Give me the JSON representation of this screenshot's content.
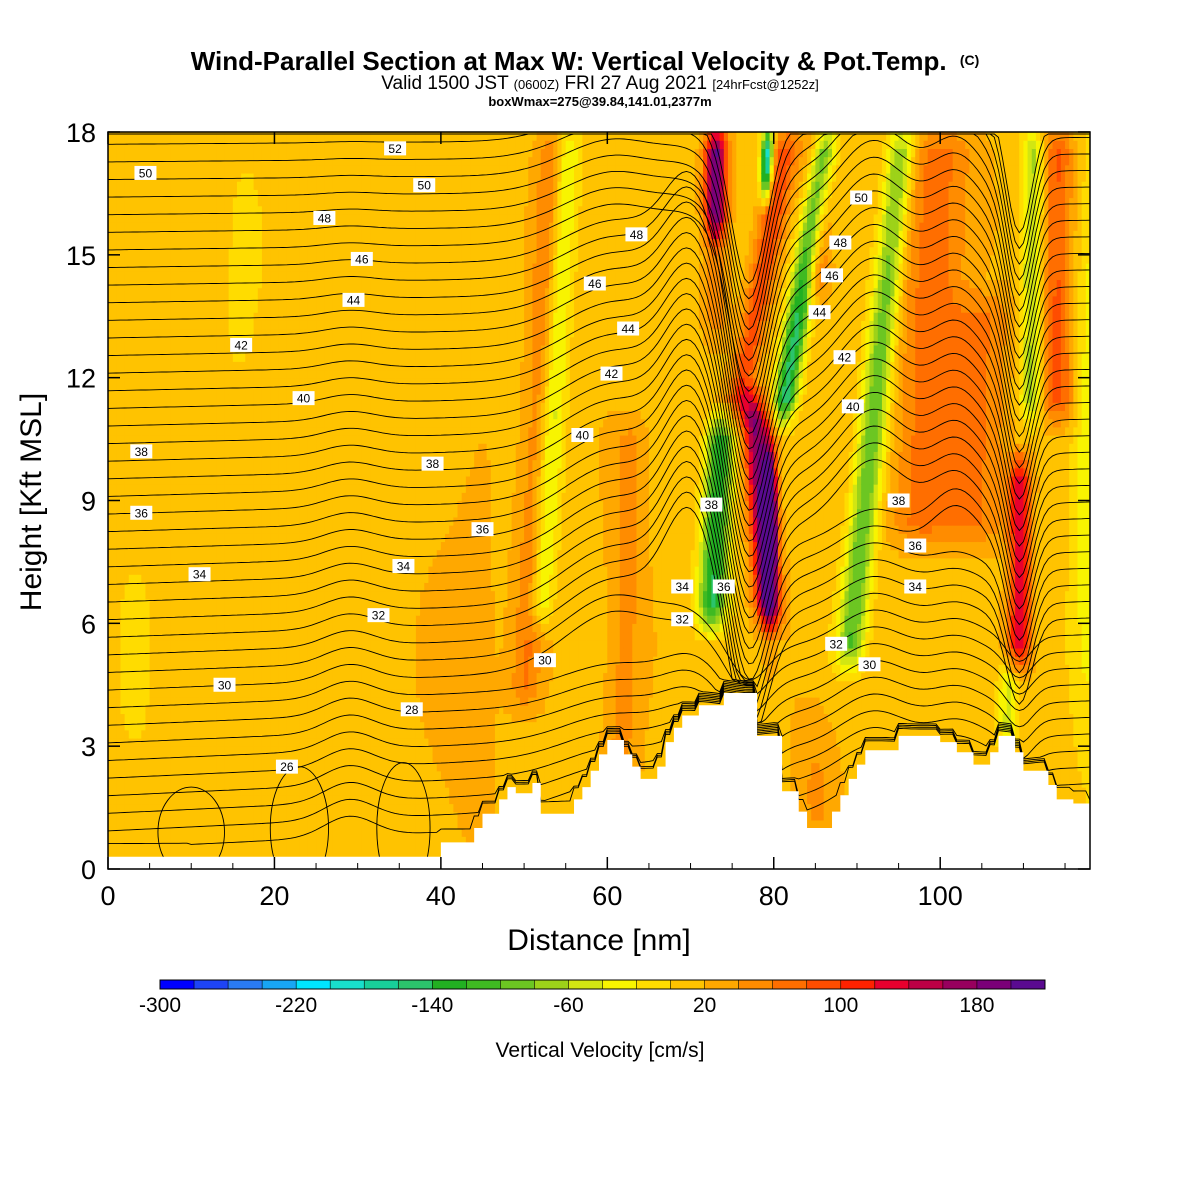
{
  "chart_data": {
    "type": "heatmap",
    "title": "Wind-Parallel Section at Max W: Vertical Velocity & Pot.Temp.",
    "title_mark": "(C)",
    "subtitle_main": "Valid 1500 JST",
    "subtitle_z": "(0600Z)",
    "subtitle_date": "FRI 27 Aug 2021",
    "subtitle_fcst": "[24hrFcst@1252z]",
    "subtitle2": "boxWmax=275@39.84,141.01,2377m",
    "xlabel": "Distance [nm]",
    "ylabel": "Height [Kft MSL]",
    "xlim": [
      0,
      118
    ],
    "ylim": [
      0,
      18
    ],
    "x_ticks": [
      0,
      20,
      40,
      60,
      80,
      100
    ],
    "y_ticks": [
      0,
      3,
      6,
      9,
      12,
      15,
      18
    ],
    "colorbar": {
      "label": "Vertical Velocity [cm/s]",
      "min": -300,
      "max": 220,
      "step": 20,
      "tick_values": [
        -300,
        -220,
        -140,
        -60,
        20,
        100,
        180
      ],
      "colors": [
        "#0000ff",
        "#1e44f5",
        "#2a7bf2",
        "#18a6f4",
        "#00e5ff",
        "#18dfcc",
        "#18cf9a",
        "#2bc46c",
        "#22b022",
        "#3fba22",
        "#6cc622",
        "#9dd219",
        "#d2e612",
        "#f8f400",
        "#ffdc00",
        "#ffc300",
        "#ffa800",
        "#ff8c00",
        "#ff6e00",
        "#ff4d00",
        "#ff2200",
        "#e8002e",
        "#bd0045",
        "#98005e",
        "#7b0078",
        "#5a0a90"
      ]
    },
    "terrain_kft": [
      [
        0,
        0.3
      ],
      [
        40,
        0.3
      ],
      [
        40,
        0.65
      ],
      [
        44,
        0.65
      ],
      [
        44,
        1.0
      ],
      [
        45,
        1.0
      ],
      [
        45,
        1.35
      ],
      [
        47,
        1.35
      ],
      [
        47,
        1.7
      ],
      [
        48,
        1.7
      ],
      [
        48,
        2.0
      ],
      [
        49,
        2.0
      ],
      [
        49,
        1.85
      ],
      [
        51,
        1.85
      ],
      [
        51,
        2.1
      ],
      [
        52,
        2.1
      ],
      [
        52,
        1.35
      ],
      [
        56,
        1.35
      ],
      [
        56,
        1.7
      ],
      [
        57,
        1.7
      ],
      [
        57,
        2.0
      ],
      [
        58,
        2.0
      ],
      [
        58,
        2.4
      ],
      [
        59,
        2.4
      ],
      [
        59,
        2.8
      ],
      [
        60,
        2.8
      ],
      [
        60,
        3.15
      ],
      [
        62,
        3.15
      ],
      [
        62,
        2.8
      ],
      [
        63,
        2.8
      ],
      [
        63,
        2.5
      ],
      [
        64,
        2.5
      ],
      [
        64,
        2.2
      ],
      [
        66,
        2.2
      ],
      [
        66,
        2.5
      ],
      [
        67,
        2.5
      ],
      [
        67,
        3.1
      ],
      [
        68,
        3.1
      ],
      [
        68,
        3.45
      ],
      [
        69,
        3.45
      ],
      [
        69,
        3.75
      ],
      [
        71,
        3.75
      ],
      [
        71,
        4.0
      ],
      [
        74,
        4.0
      ],
      [
        74,
        4.3
      ],
      [
        78,
        4.3
      ],
      [
        78,
        3.25
      ],
      [
        81,
        3.25
      ],
      [
        81,
        1.9
      ],
      [
        83,
        1.9
      ],
      [
        83,
        1.4
      ],
      [
        84,
        1.4
      ],
      [
        84,
        1.0
      ],
      [
        87,
        1.0
      ],
      [
        87,
        1.4
      ],
      [
        88,
        1.4
      ],
      [
        88,
        1.8
      ],
      [
        89,
        1.8
      ],
      [
        89,
        2.2
      ],
      [
        90,
        2.2
      ],
      [
        90,
        2.55
      ],
      [
        91,
        2.55
      ],
      [
        91,
        2.9
      ],
      [
        95,
        2.9
      ],
      [
        95,
        3.25
      ],
      [
        100,
        3.25
      ],
      [
        100,
        3.1
      ],
      [
        102,
        3.1
      ],
      [
        102,
        2.85
      ],
      [
        104,
        2.85
      ],
      [
        104,
        2.55
      ],
      [
        106,
        2.55
      ],
      [
        106,
        2.85
      ],
      [
        107,
        2.85
      ],
      [
        107,
        3.25
      ],
      [
        109,
        3.25
      ],
      [
        109,
        2.85
      ],
      [
        110,
        2.85
      ],
      [
        110,
        2.4
      ],
      [
        113,
        2.4
      ],
      [
        113,
        2.05
      ],
      [
        114,
        2.05
      ],
      [
        114,
        1.7
      ],
      [
        116,
        1.7
      ],
      [
        116,
        1.6
      ],
      [
        118,
        1.6
      ],
      [
        118,
        0
      ]
    ],
    "isentropes": [
      {
        "theta": 26,
        "label_at": [
          21.5,
          2.5
        ]
      },
      {
        "theta": 28,
        "label_at": [
          36.5,
          3.9
        ]
      },
      {
        "theta": 30,
        "label_at": [
          14,
          4.5
        ]
      },
      {
        "theta": 30,
        "label_at": [
          52.5,
          5.1
        ]
      },
      {
        "theta": 30,
        "label_at": [
          91.5,
          5.0
        ]
      },
      {
        "theta": 32,
        "label_at": [
          32.5,
          6.2
        ]
      },
      {
        "theta": 32,
        "label_at": [
          69,
          6.1
        ]
      },
      {
        "theta": 32,
        "label_at": [
          87.5,
          5.5
        ]
      },
      {
        "theta": 34,
        "label_at": [
          11,
          7.2
        ]
      },
      {
        "theta": 34,
        "label_at": [
          35.5,
          7.4
        ]
      },
      {
        "theta": 34,
        "label_at": [
          69,
          6.9
        ]
      },
      {
        "theta": 34,
        "label_at": [
          97,
          6.9
        ]
      },
      {
        "theta": 36,
        "label_at": [
          4,
          8.7
        ]
      },
      {
        "theta": 36,
        "label_at": [
          45,
          8.3
        ]
      },
      {
        "theta": 36,
        "label_at": [
          74,
          6.9
        ]
      },
      {
        "theta": 36,
        "label_at": [
          97,
          7.9
        ]
      },
      {
        "theta": 38,
        "label_at": [
          4,
          10.2
        ]
      },
      {
        "theta": 38,
        "label_at": [
          39,
          9.9
        ]
      },
      {
        "theta": 38,
        "label_at": [
          72.5,
          8.9
        ]
      },
      {
        "theta": 38,
        "label_at": [
          95,
          9.0
        ]
      },
      {
        "theta": 40,
        "label_at": [
          23.5,
          11.5
        ]
      },
      {
        "theta": 40,
        "label_at": [
          57,
          10.6
        ]
      },
      {
        "theta": 40,
        "label_at": [
          89.5,
          11.3
        ]
      },
      {
        "theta": 42,
        "label_at": [
          16,
          12.8
        ]
      },
      {
        "theta": 42,
        "label_at": [
          60.5,
          12.1
        ]
      },
      {
        "theta": 42,
        "label_at": [
          88.5,
          12.5
        ]
      },
      {
        "theta": 44,
        "label_at": [
          29.5,
          13.9
        ]
      },
      {
        "theta": 44,
        "label_at": [
          62.5,
          13.2
        ]
      },
      {
        "theta": 44,
        "label_at": [
          85.5,
          13.6
        ]
      },
      {
        "theta": 46,
        "label_at": [
          30.5,
          14.9
        ]
      },
      {
        "theta": 46,
        "label_at": [
          58.5,
          14.3
        ]
      },
      {
        "theta": 46,
        "label_at": [
          87,
          14.5
        ]
      },
      {
        "theta": 48,
        "label_at": [
          26,
          15.9
        ]
      },
      {
        "theta": 48,
        "label_at": [
          63.5,
          15.5
        ]
      },
      {
        "theta": 48,
        "label_at": [
          88,
          15.3
        ]
      },
      {
        "theta": 50,
        "label_at": [
          4.5,
          17.0
        ]
      },
      {
        "theta": 50,
        "label_at": [
          38,
          16.7
        ]
      },
      {
        "theta": 50,
        "label_at": [
          90.5,
          16.4
        ]
      },
      {
        "theta": 52,
        "label_at": [
          34.5,
          17.6
        ]
      }
    ]
  }
}
